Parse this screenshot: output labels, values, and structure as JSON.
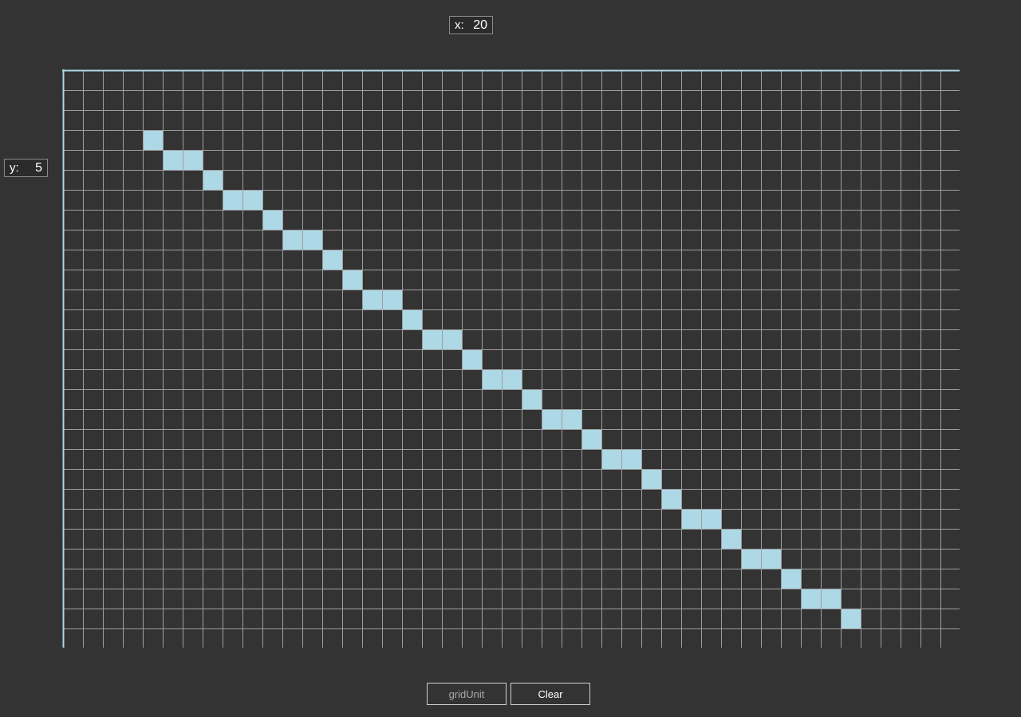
{
  "x_readout": {
    "label": "x:",
    "value": "20"
  },
  "y_readout": {
    "label": "y:",
    "value": "5"
  },
  "grid": {
    "columns": 45,
    "rows": 29,
    "line_color": "#9e9e9e",
    "axis_color": "#add8e6",
    "fill_color": "#add8e6",
    "background": "#333333",
    "filled_cells": [
      [
        4,
        3
      ],
      [
        5,
        4
      ],
      [
        6,
        4
      ],
      [
        7,
        5
      ],
      [
        8,
        6
      ],
      [
        9,
        6
      ],
      [
        10,
        7
      ],
      [
        11,
        8
      ],
      [
        12,
        8
      ],
      [
        13,
        9
      ],
      [
        14,
        10
      ],
      [
        15,
        11
      ],
      [
        16,
        11
      ],
      [
        17,
        12
      ],
      [
        18,
        13
      ],
      [
        19,
        13
      ],
      [
        20,
        14
      ],
      [
        21,
        15
      ],
      [
        22,
        15
      ],
      [
        23,
        16
      ],
      [
        24,
        17
      ],
      [
        25,
        17
      ],
      [
        26,
        18
      ],
      [
        27,
        19
      ],
      [
        28,
        19
      ],
      [
        29,
        20
      ],
      [
        30,
        21
      ],
      [
        31,
        22
      ],
      [
        32,
        22
      ],
      [
        33,
        23
      ],
      [
        34,
        24
      ],
      [
        35,
        24
      ],
      [
        36,
        25
      ],
      [
        37,
        26
      ],
      [
        38,
        26
      ],
      [
        39,
        27
      ]
    ]
  },
  "buttons": {
    "grid_unit_label": "gridUnit",
    "clear_label": "Clear"
  }
}
